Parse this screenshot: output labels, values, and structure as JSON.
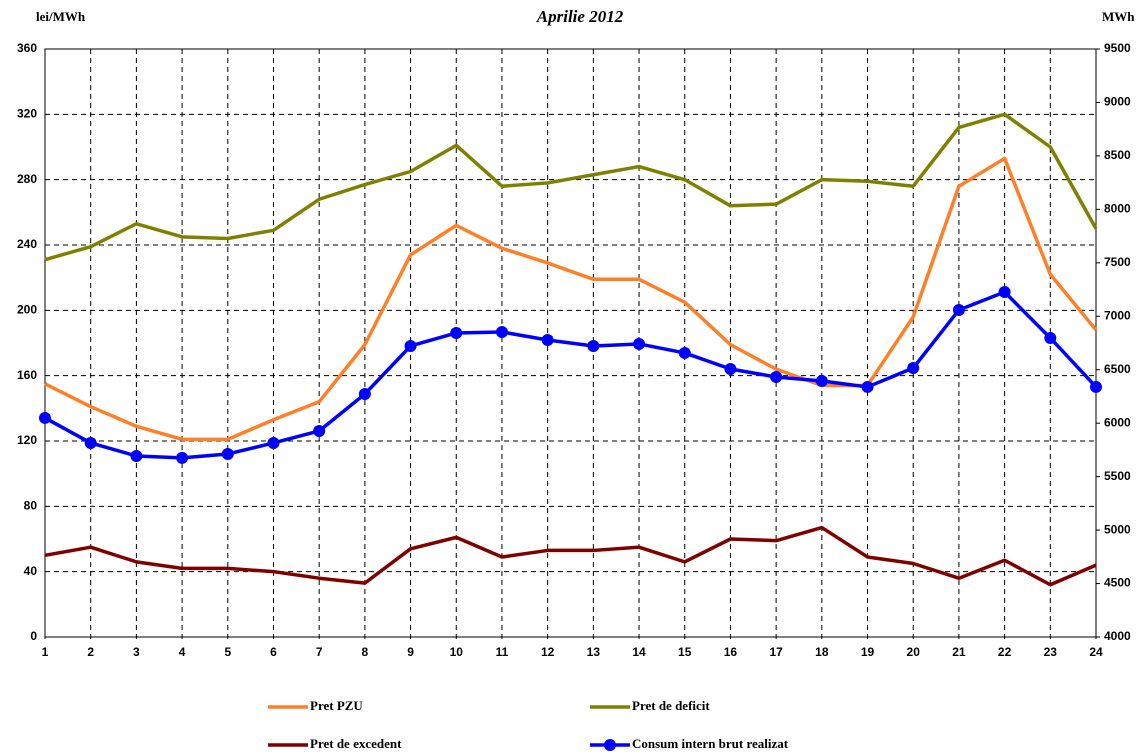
{
  "chart_data": {
    "type": "line",
    "title": "Aprilie 2012",
    "y_label": "lei/MWh",
    "y2_label": "MWh",
    "x": [
      1,
      2,
      3,
      4,
      5,
      6,
      7,
      8,
      9,
      10,
      11,
      12,
      13,
      14,
      15,
      16,
      17,
      18,
      19,
      20,
      21,
      22,
      23,
      24
    ],
    "xlim": [
      1,
      24
    ],
    "xticks": [
      1,
      2,
      3,
      4,
      5,
      6,
      7,
      8,
      9,
      10,
      11,
      12,
      13,
      14,
      15,
      16,
      17,
      18,
      19,
      20,
      21,
      22,
      23,
      24
    ],
    "ylim": [
      0,
      360
    ],
    "yticks": [
      0,
      40,
      80,
      120,
      160,
      200,
      240,
      280,
      320,
      360
    ],
    "y2lim": [
      4000,
      9500
    ],
    "y2ticks": [
      4000,
      4500,
      5000,
      5500,
      6000,
      6500,
      7000,
      7500,
      8000,
      8500,
      9000,
      9500
    ],
    "grid": true,
    "legend": "bottom",
    "series": [
      {
        "name": "Pret PZU",
        "color": "#ff7f27",
        "values": [
          155,
          141,
          129,
          121,
          121,
          133,
          144,
          179,
          234,
          252,
          238,
          229,
          219,
          219,
          205,
          179,
          164,
          154,
          154,
          196,
          276,
          293,
          222,
          188
        ]
      },
      {
        "name": "Pret de deficit",
        "color": "#808000",
        "values": [
          231,
          239,
          253,
          245,
          244,
          249,
          268,
          277,
          285,
          301,
          276,
          278,
          283,
          288,
          280,
          264,
          265,
          280,
          279,
          276,
          312,
          320,
          300,
          250
        ]
      },
      {
        "name": "Pret de excedent",
        "color": "#800000",
        "values": [
          50,
          55,
          46,
          42,
          42,
          40,
          36,
          33,
          54,
          61,
          49,
          53,
          53,
          55,
          46,
          60,
          59,
          67,
          49,
          45,
          36,
          47,
          32,
          44
        ]
      },
      {
        "name": "Consum intern brut realizat",
        "color": "#0000ff",
        "axis": "y2",
        "marker": "circle",
        "values": [
          6049,
          5815,
          5693,
          5675,
          5712,
          5815,
          5927,
          6273,
          6722,
          6844,
          6853,
          6778,
          6722,
          6741,
          6657,
          6507,
          6432,
          6395,
          6339,
          6516,
          7059,
          7227,
          6797,
          6339
        ]
      }
    ]
  }
}
